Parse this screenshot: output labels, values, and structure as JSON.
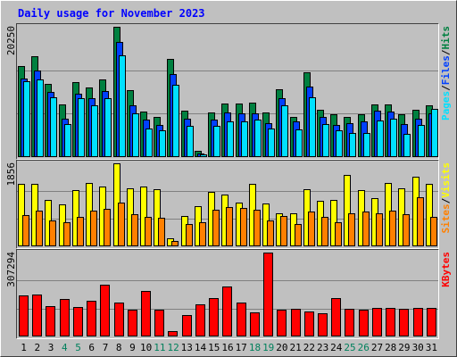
{
  "colors": {
    "background": "#c0c0c0",
    "title_text": "#0000ff",
    "hits": "#008040",
    "files": "#0040ff",
    "pages": "#00e0ff",
    "visits": "#ffff00",
    "sites": "#ff8000",
    "kbytes": "#ff0000",
    "weekend_label": "#00805c",
    "weekday_label": "#000000"
  },
  "chart_data": {
    "type": "bar",
    "title": "Daily usage for November 2023",
    "categories": [
      "1",
      "2",
      "3",
      "4",
      "5",
      "6",
      "7",
      "8",
      "9",
      "10",
      "11",
      "12",
      "13",
      "14",
      "15",
      "16",
      "17",
      "18",
      "19",
      "20",
      "21",
      "22",
      "23",
      "24",
      "25",
      "26",
      "27",
      "28",
      "29",
      "30",
      "31"
    ],
    "weekend_days": [
      "4",
      "5",
      "11",
      "12",
      "18",
      "19",
      "25",
      "26"
    ],
    "panels": [
      {
        "id": "hits-files-pages",
        "max_label": "20250",
        "ymax": 20250,
        "legend": [
          {
            "text": "Pages",
            "series": "pages"
          },
          {
            "text": "Files",
            "series": "files"
          },
          {
            "text": "Hits",
            "series": "hits"
          }
        ],
        "series": [
          {
            "name": "Hits",
            "key": "hits",
            "values": [
              14200,
              15700,
              11400,
              8200,
              11600,
              10800,
              12000,
              20250,
              10400,
              7100,
              6300,
              15200,
              7200,
              1000,
              7000,
              8300,
              8300,
              8400,
              7000,
              10500,
              6300,
              13200,
              7400,
              6600,
              6300,
              6600,
              8200,
              8200,
              6600,
              7300,
              8000
            ]
          },
          {
            "name": "Files",
            "key": "files",
            "values": [
              12200,
              13400,
              10100,
              5900,
              9900,
              9100,
              10300,
              17900,
              8000,
              5800,
              5000,
              12900,
              6000,
              500,
              5800,
              6900,
              6800,
              6800,
              5300,
              9100,
              5500,
              11000,
              6300,
              5000,
              5300,
              5600,
              7200,
              7100,
              5100,
              6000,
              6800
            ]
          },
          {
            "name": "Pages",
            "key": "pages",
            "values": [
              11800,
              12000,
              9300,
              5200,
              9200,
              8000,
              9200,
              15800,
              6800,
              4500,
              4200,
              11200,
              4900,
              400,
              4800,
              5600,
              5600,
              5800,
              4400,
              8000,
              4300,
              9300,
              5100,
              4100,
              3700,
              3700,
              5700,
              5900,
              3600,
              5000,
              7500
            ]
          }
        ]
      },
      {
        "id": "visits-sites",
        "max_label": "1856",
        "ymax": 1856,
        "legend": [
          {
            "text": "Sites",
            "series": "sites"
          },
          {
            "text": "Visits",
            "series": "visits"
          }
        ],
        "series": [
          {
            "name": "Visits",
            "key": "visits",
            "values": [
              1400,
              1400,
              1030,
              930,
              1250,
              1420,
              1330,
              1856,
              1300,
              1340,
              1280,
              180,
              680,
              900,
              1210,
              1150,
              970,
              1400,
              950,
              730,
              740,
              1270,
              1020,
              1035,
              1600,
              1250,
              1070,
              1410,
              1300,
              1560,
              1400
            ]
          },
          {
            "name": "Sites",
            "key": "sites",
            "values": [
              700,
              790,
              580,
              530,
              650,
              790,
              830,
              970,
              710,
              660,
              640,
              120,
              500,
              540,
              820,
              880,
              850,
              810,
              570,
              680,
              490,
              770,
              650,
              540,
              730,
              780,
              730,
              800,
              720,
              1090,
              650
            ]
          }
        ]
      },
      {
        "id": "kbytes",
        "max_label": "307294",
        "ymax": 307294,
        "legend": [
          {
            "text": "KBytes",
            "series": "kbytes"
          }
        ],
        "series": [
          {
            "name": "KBytes",
            "key": "kbytes",
            "values": [
              150000,
              155000,
              112000,
              137000,
              108000,
              132000,
              190000,
              123000,
              97000,
              167000,
              97000,
              20000,
              78000,
              118000,
              141000,
              184000,
              124000,
              88000,
              307294,
              97000,
              102000,
              90000,
              86000,
              142000,
              100000,
              98000,
              105000,
              104000,
              101000,
              103000,
              106000
            ]
          }
        ]
      }
    ]
  }
}
